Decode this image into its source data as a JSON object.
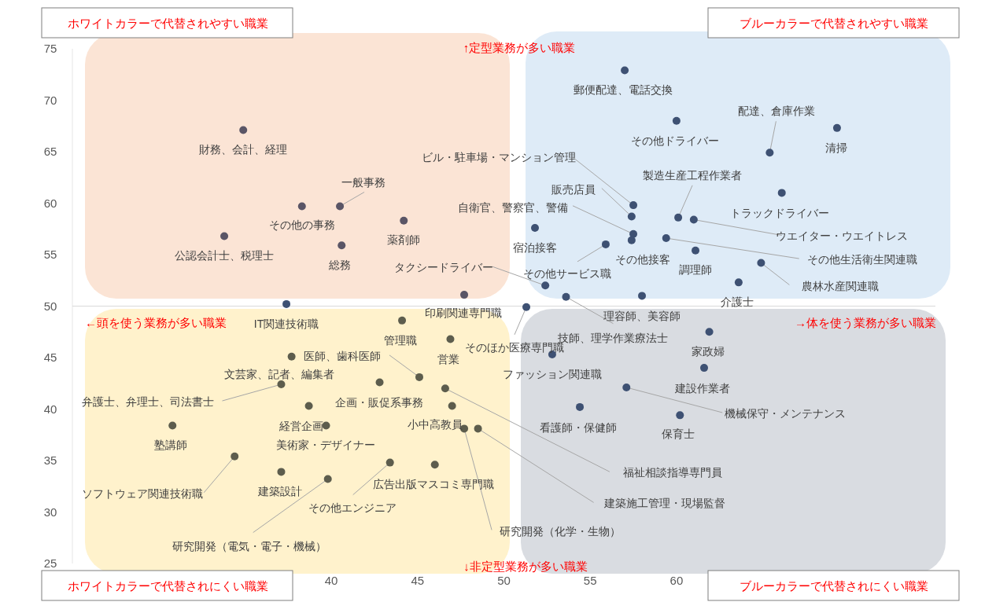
{
  "chart_data": {
    "type": "scatter",
    "xlim": [
      25,
      75
    ],
    "xticks": [
      40,
      45,
      50,
      55,
      60
    ],
    "ylim": [
      25,
      75
    ],
    "yticks": [
      25,
      30,
      35,
      40,
      45,
      50,
      55,
      60,
      65,
      70,
      75
    ],
    "grid": false,
    "marker": "circle",
    "ref_lines": [
      {
        "axis": "y",
        "value": 50,
        "color": "#d9d9d9"
      }
    ],
    "series": [
      {
        "color": "#5a5566",
        "x": [
          34.9,
          38.3,
          40.5,
          33.8,
          40.6,
          44.2,
          47.7
        ],
        "values": [
          67.1,
          59.7,
          59.7,
          56.8,
          55.9,
          58.3,
          51.1
        ]
      },
      {
        "color": "#3e5173",
        "x": [
          37.4,
          57.0,
          60.0,
          65.4,
          69.3,
          57.5,
          57.4,
          60.1,
          66.1,
          61.0,
          57.5,
          57.4,
          55.9,
          51.8,
          59.4,
          61.1,
          64.9,
          63.6,
          52.4,
          58.0,
          53.6,
          51.3,
          52.8,
          61.9,
          61.6,
          57.1,
          54.4,
          60.2
        ],
        "values": [
          50.2,
          72.9,
          68.0,
          64.9,
          67.3,
          59.8,
          58.7,
          58.6,
          61.0,
          58.4,
          57.0,
          56.4,
          56.0,
          57.6,
          56.6,
          55.4,
          54.2,
          52.3,
          52.0,
          51.0,
          50.9,
          49.9,
          45.3,
          47.5,
          44.0,
          42.1,
          40.2,
          39.4
        ]
      },
      {
        "color": "#5d5d4d",
        "x": [
          44.1,
          46.9,
          45.1,
          37.7,
          37.1,
          42.8,
          46.6,
          47.0,
          38.7,
          39.7,
          30.8,
          47.7,
          48.5,
          34.4,
          37.1,
          39.8,
          43.4,
          46.0
        ],
        "values": [
          48.6,
          46.8,
          43.1,
          45.1,
          42.4,
          42.6,
          42.0,
          40.3,
          40.3,
          38.4,
          38.4,
          38.1,
          38.1,
          35.4,
          33.9,
          33.2,
          34.8,
          34.6
        ]
      }
    ],
    "annotations": [
      "ホワイトカラーで代替されやすい職業",
      "ブルーカラーで代替されやすい職業",
      "ホワイトカラーで代替されにくい職業",
      "ブルーカラーで代替されにくい職業",
      "↑定型業務が多い職業",
      "→体を使う業務が多い職業",
      "↓非定型業務が多い職業",
      "←頭を使う業務が多い職業",
      {
        "text": "財務、会計、経理",
        "x": 34.9,
        "y": 67.1
      },
      {
        "text": "その他の事務",
        "x": 38.3,
        "y": 59.7
      },
      {
        "text": "一般事務",
        "x": 40.5,
        "y": 59.7
      },
      {
        "text": "公認会計士、税理士",
        "x": 33.8,
        "y": 56.8
      },
      {
        "text": "総務",
        "x": 40.6,
        "y": 55.9
      },
      {
        "text": "薬剤師",
        "x": 44.2,
        "y": 58.3
      },
      {
        "text": "印刷関連専門職",
        "x": 47.7,
        "y": 51.1
      },
      {
        "text": "IT関連技術職",
        "x": 37.4,
        "y": 50.2
      },
      {
        "text": "郵便配達、電話交換",
        "x": 57.0,
        "y": 72.9
      },
      {
        "text": "その他ドライバー",
        "x": 60.0,
        "y": 68.0
      },
      {
        "text": "配達、倉庫作業",
        "x": 65.4,
        "y": 64.9
      },
      {
        "text": "清掃",
        "x": 69.3,
        "y": 67.3
      },
      {
        "text": "ビル・駐車場・マンション管理",
        "x": 57.5,
        "y": 59.8
      },
      {
        "text": "販売店員",
        "x": 57.4,
        "y": 58.7
      },
      {
        "text": "製造生産工程作業者",
        "x": 60.1,
        "y": 58.6
      },
      {
        "text": "トラックドライバー",
        "x": 66.1,
        "y": 61.0
      },
      {
        "text": "ウエイター・ウエイトレス",
        "x": 61.0,
        "y": 58.4
      },
      {
        "text": "自衛官、警察官、警備",
        "x": 57.5,
        "y": 57.0
      },
      {
        "text": "その他接客",
        "x": 57.4,
        "y": 56.4
      },
      {
        "text": "その他サービス職",
        "x": 55.9,
        "y": 56.0
      },
      {
        "text": "宿泊接客",
        "x": 51.8,
        "y": 57.6
      },
      {
        "text": "その他生活衛生関連職",
        "x": 59.4,
        "y": 56.6
      },
      {
        "text": "調理師",
        "x": 61.1,
        "y": 55.4
      },
      {
        "text": "農林水産関連職",
        "x": 64.9,
        "y": 54.2
      },
      {
        "text": "介護士",
        "x": 63.6,
        "y": 52.3
      },
      {
        "text": "タクシードライバー",
        "x": 52.4,
        "y": 52.0
      },
      {
        "text": "理容師、美容師",
        "x": 58.0,
        "y": 51.0
      },
      {
        "text": "技師、理学作業療法士",
        "x": 53.6,
        "y": 50.9
      },
      {
        "text": "そのほか医療専門職",
        "x": 51.3,
        "y": 49.9
      },
      {
        "text": "管理職",
        "x": 44.1,
        "y": 48.6
      },
      {
        "text": "営業",
        "x": 46.9,
        "y": 46.8
      },
      {
        "text": "医師、歯科医師",
        "x": 45.1,
        "y": 43.1
      },
      {
        "text": "文芸家、記者、編集者",
        "x": 37.7,
        "y": 45.1
      },
      {
        "text": "弁護士、弁理士、司法書士",
        "x": 37.1,
        "y": 42.4
      },
      {
        "text": "企画・販促系事務",
        "x": 42.8,
        "y": 42.6
      },
      {
        "text": "福祉相談指導専門員",
        "x": 46.6,
        "y": 42.0
      },
      {
        "text": "小中高教員",
        "x": 47.0,
        "y": 40.3
      },
      {
        "text": "経営企画",
        "x": 38.7,
        "y": 40.3
      },
      {
        "text": "美術家・デザイナー",
        "x": 39.7,
        "y": 38.4
      },
      {
        "text": "塾講師",
        "x": 30.8,
        "y": 38.4
      },
      {
        "text": "研究開発（化学・生物）",
        "x": 47.7,
        "y": 38.1
      },
      {
        "text": "建築施工管理・現場監督",
        "x": 48.5,
        "y": 38.1
      },
      {
        "text": "ソフトウェア関連技術職",
        "x": 34.4,
        "y": 35.4
      },
      {
        "text": "建築設計",
        "x": 37.1,
        "y": 33.9
      },
      {
        "text": "研究開発（電気・電子・機械）",
        "x": 39.8,
        "y": 33.2
      },
      {
        "text": "その他エンジニア",
        "x": 43.4,
        "y": 34.8
      },
      {
        "text": "広告出版マスコミ専門職",
        "x": 46.0,
        "y": 34.6
      },
      {
        "text": "ファッション関連職",
        "x": 52.8,
        "y": 45.3
      },
      {
        "text": "家政婦",
        "x": 61.9,
        "y": 47.5
      },
      {
        "text": "建設作業者",
        "x": 61.6,
        "y": 44.0
      },
      {
        "text": "機械保守・メンテナンス",
        "x": 57.1,
        "y": 42.1
      },
      {
        "text": "看護師・保健師",
        "x": 54.4,
        "y": 40.2
      },
      {
        "text": "保育士",
        "x": 60.2,
        "y": 39.4
      }
    ]
  }
}
